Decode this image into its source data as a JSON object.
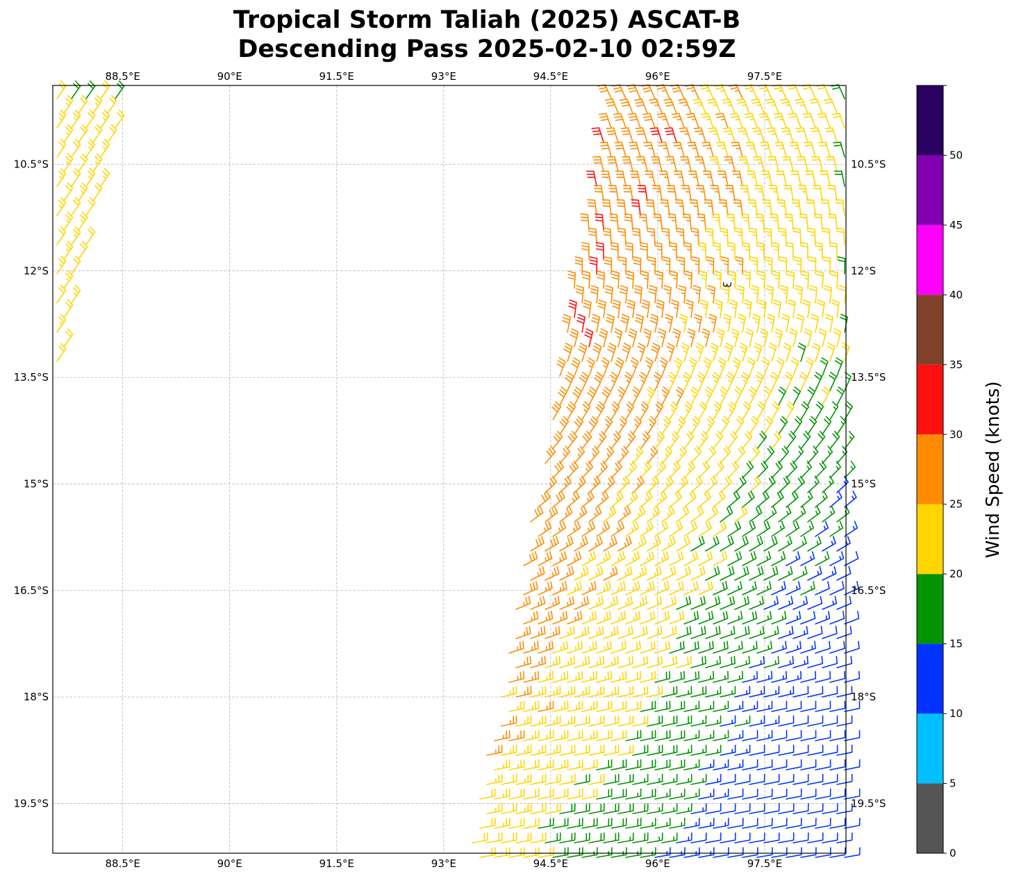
{
  "chart_data": {
    "type": "barb",
    "title": [
      "Tropical Storm Taliah (2025) ASCAT-B",
      "Descending Pass 2025-02-10 02:59Z"
    ],
    "xlabel": "",
    "ylabel": "",
    "xlim": [
      87.52,
      98.64
    ],
    "ylim_south": [
      9.39,
      20.2
    ],
    "grid": true,
    "x_ticks": [
      {
        "value": 88.5,
        "label": "88.5°E"
      },
      {
        "value": 90,
        "label": "90°E"
      },
      {
        "value": 91.5,
        "label": "91.5°E"
      },
      {
        "value": 93,
        "label": "93°E"
      },
      {
        "value": 94.5,
        "label": "94.5°E"
      },
      {
        "value": 96,
        "label": "96°E"
      },
      {
        "value": 97.5,
        "label": "97.5°E"
      }
    ],
    "y_ticks": [
      {
        "value": 10.5,
        "label": "10.5°S"
      },
      {
        "value": 12,
        "label": "12°S"
      },
      {
        "value": 13.5,
        "label": "13.5°S"
      },
      {
        "value": 15,
        "label": "15°S"
      },
      {
        "value": 16.5,
        "label": "16.5°S"
      },
      {
        "value": 18,
        "label": "18°S"
      },
      {
        "value": 19.5,
        "label": "19.5°S"
      }
    ],
    "colorbar": {
      "label": "Wind Speed (knots)",
      "bounds": [
        0,
        5,
        10,
        15,
        20,
        25,
        30,
        35,
        40,
        45,
        50,
        55
      ],
      "tick_labels": [
        "0",
        "5",
        "10",
        "15",
        "20",
        "25",
        "30",
        "35",
        "40",
        "45",
        "50"
      ],
      "colors": [
        "#555555",
        "#00bfff",
        "#0033ff",
        "#009400",
        "#ffd500",
        "#ff8c00",
        "#ff1010",
        "#80402a",
        "#ff00ff",
        "#8000b0",
        "#2a0060"
      ]
    },
    "wind_field": {
      "units": "knots",
      "storm_center": {
        "lon": 96.97,
        "lat_south": 12.19
      },
      "peak_obs": [
        {
          "lon": 95.98,
          "lat_south": 10.1,
          "speed": 32
        },
        {
          "lon": 96.22,
          "lat_south": 10.07,
          "speed": 32
        },
        {
          "lon": 95.8,
          "lat_south": 11.03,
          "speed": 32
        }
      ],
      "speed_range": [
        10,
        33
      ],
      "direction_from": "NNW in north, NE mid-swath, E in south"
    }
  }
}
